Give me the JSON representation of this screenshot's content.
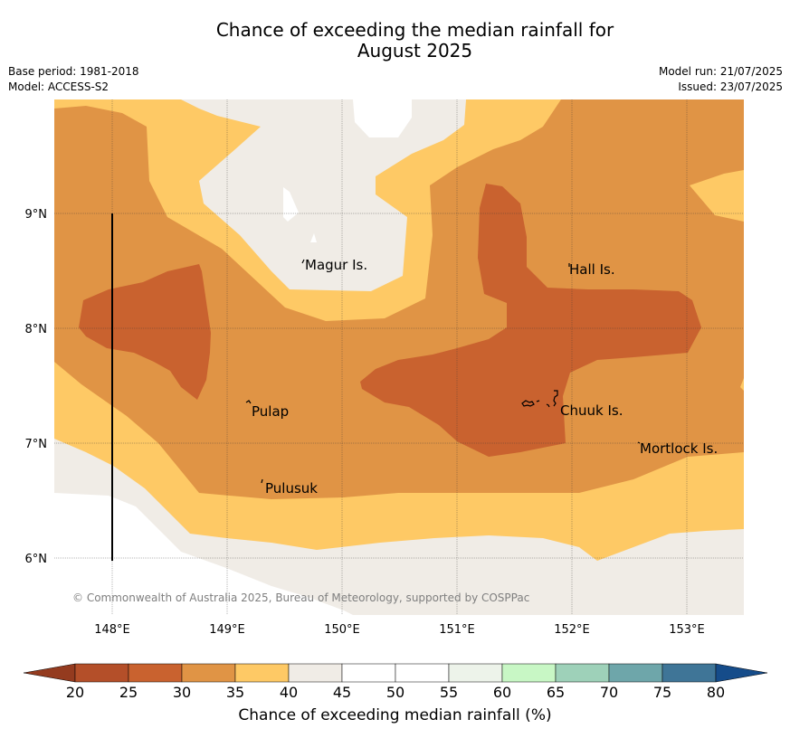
{
  "title_line1": "Chance of exceeding the median rainfall for",
  "title_line2": "August 2025",
  "meta_left": [
    "Base period: 1981-2018",
    "Model: ACCESS-S2"
  ],
  "meta_right": [
    "Model run: 21/07/2025",
    "Issued: 23/07/2025"
  ],
  "map": {
    "lat_ticks": [
      "9°N",
      "8°N",
      "7°N",
      "6°N"
    ],
    "lon_ticks": [
      "148°E",
      "149°E",
      "150°E",
      "151°E",
      "152°E",
      "153°E"
    ],
    "places": [
      "Magur Is.",
      "Hall Is.",
      "Pulap",
      "Chuuk Is.",
      "Mortlock Is.",
      "Pulusuk"
    ],
    "copyright": "© Commonwealth of Australia 2025, Bureau of Meteorology, supported by COSPPac",
    "colors": {
      "20-25": "#b44f29",
      "25-30": "#c9622f",
      "30-35": "#e09445",
      "35-40": "#fec965",
      "40-45": "#f0ece6"
    }
  },
  "colorbar": {
    "ticks": [
      "20",
      "25",
      "30",
      "35",
      "40",
      "45",
      "50",
      "55",
      "60",
      "65",
      "70",
      "75",
      "80"
    ],
    "colors": [
      "#b44f29",
      "#c9622f",
      "#e09445",
      "#fec965",
      "#f0ece6",
      "#ffffff",
      "#ffffff",
      "#edf3ea",
      "#c8f7c5",
      "#9ed1b9",
      "#6ea6aa",
      "#3f7597"
    ],
    "under_color": "#943b1f",
    "over_color": "#154c8a",
    "label": "Chance of exceeding median rainfall (%)"
  }
}
